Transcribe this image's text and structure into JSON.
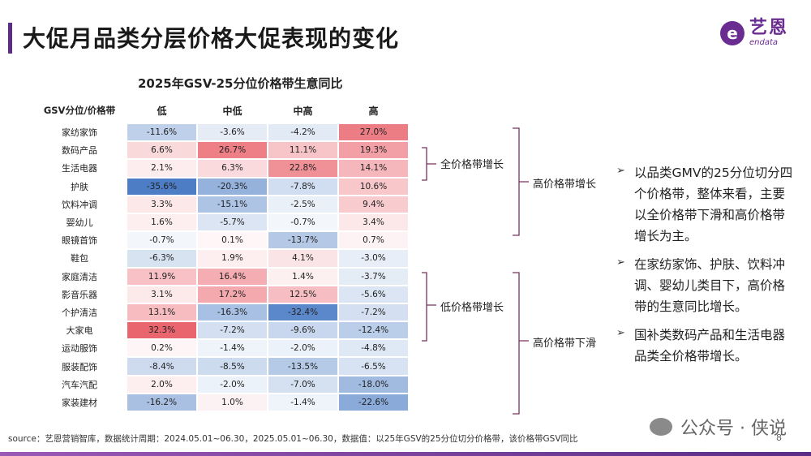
{
  "header": {
    "title": "大促月品类分层价格大促表现的变化"
  },
  "logo": {
    "mark": "e",
    "cn": "艺恩",
    "en": "endata"
  },
  "chart_data": {
    "type": "heatmap",
    "title": "2025年GSV-25分位价格带生意同比",
    "corner_label": "GSV分位/价格带",
    "columns": [
      "低",
      "中低",
      "中高",
      "高"
    ],
    "rows": [
      "家纺家饰",
      "数码产品",
      "生活电器",
      "护肤",
      "饮料冲调",
      "婴幼儿",
      "眼镜首饰",
      "鞋包",
      "家庭清洁",
      "影音乐器",
      "个护清洁",
      "大家电",
      "运动服饰",
      "服装配饰",
      "汽车汽配",
      "家装建材"
    ],
    "values": [
      [
        -11.6,
        -3.6,
        -4.2,
        27.0
      ],
      [
        6.6,
        26.7,
        11.1,
        19.3
      ],
      [
        2.1,
        6.3,
        22.8,
        14.1
      ],
      [
        -35.6,
        -20.3,
        -7.8,
        10.6
      ],
      [
        3.3,
        -15.1,
        -2.5,
        9.4
      ],
      [
        1.6,
        -5.7,
        -0.7,
        3.4
      ],
      [
        -0.7,
        0.1,
        -13.7,
        0.7
      ],
      [
        -6.3,
        1.9,
        4.1,
        -3.0
      ],
      [
        11.9,
        16.4,
        1.4,
        -3.7
      ],
      [
        3.1,
        17.2,
        12.5,
        -5.6
      ],
      [
        13.1,
        -16.3,
        -32.4,
        -7.2
      ],
      [
        32.3,
        -7.2,
        -9.6,
        -12.4
      ],
      [
        0.2,
        -1.4,
        -2.0,
        -4.8
      ],
      [
        -8.4,
        -8.5,
        -13.5,
        -6.5
      ],
      [
        2.0,
        -2.0,
        -7.0,
        -18.0
      ],
      [
        -16.2,
        1.0,
        -1.4,
        -22.6
      ]
    ],
    "value_suffix": "%",
    "colors": {
      "positive": "#e8555f",
      "negative": "#4a7cc4"
    },
    "value_range": [
      -36,
      36
    ]
  },
  "brackets": [
    {
      "label": "全价格带增长"
    },
    {
      "label": "高价格带增长"
    },
    {
      "label": "低价格带增长"
    },
    {
      "label": "高价格带下滑"
    }
  ],
  "bullets": [
    {
      "text": "以品类GMV的25分位切分四个价格带，整体来看，主要以全价格带下滑和高价格带增长为主。"
    },
    {
      "text": "在家纺家饰、护肤、饮料冲调、婴幼儿类目下，高价格带的生意同比增长。"
    },
    {
      "text": "国补类数码产品和生活电器品类全价格带增长。"
    }
  ],
  "footer": {
    "source": "source：艺恩营销智库，数据统计周期：2024.05.01~06.30，2025.05.01~06.30，数据值：以25年GSV的25分位切分价格带，该价格带GSV同比",
    "wechat": "公众号 · 侠说",
    "page_number": "8"
  }
}
